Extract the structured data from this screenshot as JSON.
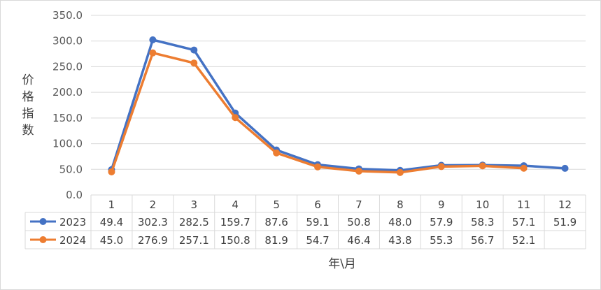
{
  "chart_data": {
    "type": "line",
    "title": "",
    "ylabel": "价格指数",
    "xlabel": "年\\月",
    "ylim": [
      0,
      350
    ],
    "yticks": [
      0,
      50,
      100,
      150,
      200,
      250,
      300,
      350
    ],
    "ytick_labels": [
      "0.0",
      "50.0",
      "100.0",
      "150.0",
      "200.0",
      "250.0",
      "300.0",
      "350.0"
    ],
    "grid": true,
    "legend": "data-table-left",
    "categories": [
      "1",
      "2",
      "3",
      "4",
      "5",
      "6",
      "7",
      "8",
      "9",
      "10",
      "11",
      "12"
    ],
    "series": [
      {
        "name": "2023",
        "color": "#4472c4",
        "values": [
          49.4,
          302.3,
          282.5,
          159.7,
          87.6,
          59.1,
          50.8,
          48.0,
          57.9,
          58.3,
          57.1,
          51.9
        ],
        "labels": [
          "49.4",
          "302.3",
          "282.5",
          "159.7",
          "87.6",
          "59.1",
          "50.8",
          "48.0",
          "57.9",
          "58.3",
          "57.1",
          "51.9"
        ]
      },
      {
        "name": "2024",
        "color": "#ed7d31",
        "values": [
          45.0,
          276.9,
          257.1,
          150.8,
          81.9,
          54.7,
          46.4,
          43.8,
          55.3,
          56.7,
          52.1,
          null
        ],
        "labels": [
          "45.0",
          "276.9",
          "257.1",
          "150.8",
          "81.9",
          "54.7",
          "46.4",
          "43.8",
          "55.3",
          "56.7",
          "52.1",
          ""
        ]
      }
    ]
  }
}
